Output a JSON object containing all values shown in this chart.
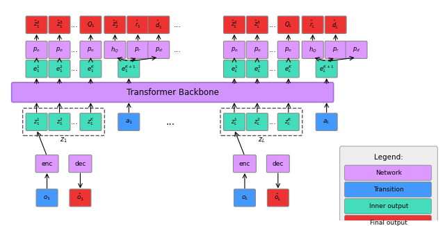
{
  "fig_width": 6.4,
  "fig_height": 3.26,
  "dpi": 100,
  "colors": {
    "network": "#dd99ff",
    "transition_blue": "#4499ff",
    "inner": "#44ddbb",
    "final": "#ee3333",
    "transformer": "#cc88ff",
    "transformer_border": "#9966cc"
  },
  "legend": {
    "items": [
      {
        "label": "Network",
        "color": "#dd99ff"
      },
      {
        "label": "Transition",
        "color": "#4499ff"
      },
      {
        "label": "Inner output",
        "color": "#44ddbb"
      },
      {
        "label": "Final output",
        "color": "#ee3333"
      }
    ]
  }
}
